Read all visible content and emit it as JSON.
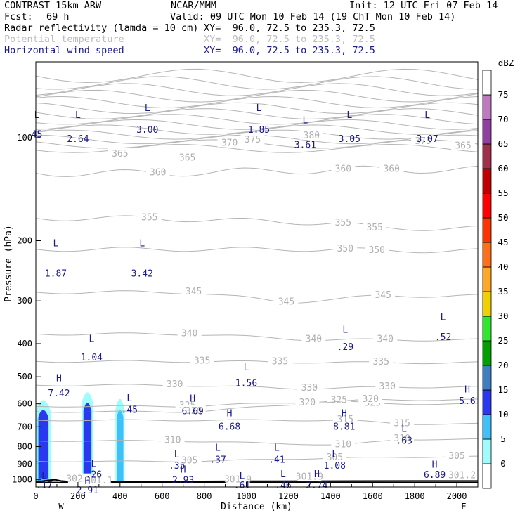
{
  "header": {
    "title_left": "CONTRAST 15km ARW",
    "title_center": "NCAR/MMM",
    "init": "Init: 12 UTC Fri 07 Feb 14",
    "fcst_label": "Fcst:",
    "fcst_value": "69 h",
    "valid": "Valid: 09 UTC Mon 10 Feb 14 (19 ChT Mon 10 Feb 14)",
    "fields": [
      {
        "name": "Radar reflectivity (lamda = 10 cm)",
        "xy": "XY=  96.0, 72.5 to 235.3, 72.5",
        "color": "#000000"
      },
      {
        "name": "Potential temperature",
        "xy": "XY=  96.0, 72.5 to 235.3, 72.5",
        "color": "#bdbdbd"
      },
      {
        "name": "Horizontal wind speed",
        "xy": "XY=  96.0, 72.5 to 235.3, 72.5",
        "color": "#1a1a90"
      }
    ]
  },
  "chart_data": {
    "type": "cross-section",
    "xlabel": "Distance (km)",
    "ylabel": "Pressure (hPa)",
    "xlim": [
      0,
      2100
    ],
    "ylim": [
      1050,
      60
    ],
    "y_scale": "log",
    "x_ticks": [
      0,
      200,
      400,
      600,
      800,
      1000,
      1200,
      1400,
      1600,
      1800,
      2000
    ],
    "y_ticks": [
      100,
      200,
      300,
      400,
      500,
      600,
      700,
      800,
      900,
      1000
    ],
    "x_end_labels": [
      "W",
      "E"
    ],
    "colorbar": {
      "unit": "dBZ",
      "levels": [
        "0",
        "5",
        "10",
        "15",
        "20",
        "25",
        "30",
        "35",
        "40",
        "45",
        "50",
        "55",
        "60",
        "65",
        "70",
        "75"
      ],
      "colors": [
        "#ffffff",
        "#9efcfc",
        "#40c0f8",
        "#2a38f0",
        "#3f7fbf",
        "#00a000",
        "#2ee82e",
        "#f0d000",
        "#ffa726",
        "#ff6f1a",
        "#ff3300",
        "#ff0000",
        "#c00000",
        "#a0304a",
        "#9040a0",
        "#c078c0",
        "#ffffff"
      ]
    },
    "reflectivity_columns": [
      {
        "x_center": 35,
        "x_halfwidth": 36,
        "top_hpa": 580,
        "core_halfwidth": 22,
        "core_top_hpa": 620
      },
      {
        "x_center": 245,
        "x_halfwidth": 28,
        "top_hpa": 550,
        "core_halfwidth": 16,
        "core_top_hpa": 590
      },
      {
        "x_center": 400,
        "x_halfwidth": 22,
        "top_hpa": 575,
        "core_halfwidth": 0,
        "core_top_hpa": 0
      }
    ],
    "isentropes": [
      {
        "value": "365",
        "labels": [
          [
            400,
            112
          ],
          [
            720,
            115
          ],
          [
            2030,
            106
          ]
        ]
      },
      {
        "value": "370",
        "labels": [
          [
            920,
            104
          ]
        ]
      },
      {
        "value": "375",
        "labels": [
          [
            1030,
            102
          ],
          [
            1840,
            103
          ]
        ]
      },
      {
        "value": "380",
        "labels": [
          [
            1310,
            99
          ]
        ]
      },
      {
        "value": "360",
        "labels": [
          [
            580,
            127
          ],
          [
            1460,
            124
          ],
          [
            1690,
            124
          ]
        ]
      },
      {
        "value": "355",
        "labels": [
          [
            540,
            172
          ],
          [
            1460,
            178
          ],
          [
            1610,
            184
          ]
        ]
      },
      {
        "value": "350",
        "labels": [
          [
            1470,
            212
          ],
          [
            1620,
            214
          ]
        ]
      },
      {
        "value": "345",
        "labels": [
          [
            750,
            283
          ],
          [
            1190,
            303
          ],
          [
            1650,
            290
          ]
        ]
      },
      {
        "value": "340",
        "labels": [
          [
            730,
            375
          ],
          [
            1320,
            390
          ],
          [
            1660,
            390
          ]
        ]
      },
      {
        "value": "335",
        "labels": [
          [
            790,
            451
          ],
          [
            1160,
            453
          ],
          [
            1640,
            455
          ]
        ]
      },
      {
        "value": "330",
        "labels": [
          [
            660,
            529
          ],
          [
            1300,
            542
          ],
          [
            1670,
            536
          ]
        ]
      },
      {
        "value": "325",
        "labels": [
          [
            720,
            610
          ],
          [
            1440,
            588
          ],
          [
            1600,
            600
          ]
        ]
      },
      {
        "value": "320",
        "labels": [
          [
            750,
            633
          ],
          [
            1290,
            598
          ],
          [
            1590,
            584
          ]
        ]
      },
      {
        "value": "315",
        "labels": [
          [
            1470,
            670
          ],
          [
            1740,
            687
          ]
        ]
      },
      {
        "value": "310",
        "labels": [
          [
            650,
            770
          ],
          [
            1460,
            792
          ],
          [
            1740,
            762
          ]
        ]
      },
      {
        "value": "305",
        "labels": [
          [
            730,
            884
          ],
          [
            1420,
            864
          ],
          [
            2000,
            856
          ]
        ]
      },
      {
        "value": "301.2",
        "labels": [
          [
            2025,
            975
          ]
        ]
      },
      {
        "value": "301.9",
        "labels": [
          [
            960,
            1004
          ]
        ]
      },
      {
        "value": "301.9",
        "labels": [
          [
            1300,
            984
          ]
        ]
      },
      {
        "value": "302.1",
        "labels": [
          [
            210,
            1000
          ]
        ]
      },
      {
        "value": "301.1",
        "labels": [
          [
            300,
            1012
          ]
        ]
      }
    ],
    "wind_extrema": [
      {
        "type": "L",
        "value": "45",
        "x": 5,
        "p_type": 86,
        "p_val": 98
      },
      {
        "type": "L",
        "value": "2.64",
        "x": 200,
        "p_type": 86,
        "p_val": 101
      },
      {
        "type": "L",
        "value": "3.00",
        "x": 530,
        "p_type": 82,
        "p_val": 95
      },
      {
        "type": "L",
        "value": "1.85",
        "x": 1060,
        "p_type": 82,
        "p_val": 95
      },
      {
        "type": "L",
        "value": "3.61",
        "x": 1280,
        "p_type": 89,
        "p_val": 105
      },
      {
        "type": "L",
        "value": "3.05",
        "x": 1490,
        "p_type": 86,
        "p_val": 101
      },
      {
        "type": "L",
        "value": "3.07",
        "x": 1860,
        "p_type": 86,
        "p_val": 101
      },
      {
        "type": "L",
        "value": "1.87",
        "x": 95,
        "p_type": 204,
        "p_val": 250
      },
      {
        "type": "L",
        "value": "3.42",
        "x": 505,
        "p_type": 204,
        "p_val": 250
      },
      {
        "type": "L",
        "value": ".52",
        "x": 1935,
        "p_type": 335,
        "p_val": 383
      },
      {
        "type": "L",
        "value": ".29",
        "x": 1470,
        "p_type": 365,
        "p_val": 410
      },
      {
        "type": "L",
        "value": "1.04",
        "x": 265,
        "p_type": 388,
        "p_val": 440
      },
      {
        "type": "L",
        "value": "1.56",
        "x": 1000,
        "p_type": 470,
        "p_val": 523
      },
      {
        "type": "H",
        "value": "7.42",
        "x": 110,
        "p_type": 505,
        "p_val": 560
      },
      {
        "type": "H",
        "value": "5.6",
        "x": 2050,
        "p_type": 545,
        "p_val": 590
      },
      {
        "type": "L",
        "value": ".45",
        "x": 445,
        "p_type": 578,
        "p_val": 625
      },
      {
        "type": "H",
        "value": "6.69",
        "x": 745,
        "p_type": 580,
        "p_val": 632
      },
      {
        "type": "H",
        "value": "6.68",
        "x": 920,
        "p_type": 640,
        "p_val": 700
      },
      {
        "type": "H",
        "value": "8.81",
        "x": 1465,
        "p_type": 640,
        "p_val": 700
      },
      {
        "type": "L",
        "value": ".63",
        "x": 1750,
        "p_type": 710,
        "p_val": 770
      },
      {
        "type": "L",
        "value": ".37",
        "x": 865,
        "p_type": 808,
        "p_val": 875
      },
      {
        "type": "L",
        "value": ".41",
        "x": 1145,
        "p_type": 808,
        "p_val": 875
      },
      {
        "type": "L",
        "value": ".35",
        "x": 670,
        "p_type": 845,
        "p_val": 910
      },
      {
        "type": "L",
        "value": "1.08",
        "x": 1420,
        "p_type": 845,
        "p_val": 910
      },
      {
        "type": "L",
        "value": ".26",
        "x": 275,
        "p_type": 900,
        "p_val": 967
      },
      {
        "type": "H",
        "value": "2.93",
        "x": 700,
        "p_type": 935,
        "p_val": 1005
      },
      {
        "type": "H",
        "value": "6.89",
        "x": 1895,
        "p_type": 905,
        "p_val": 970
      },
      {
        "type": "L",
        "value": ".61",
        "x": 980,
        "p_type": 975,
        "p_val": 1040
      },
      {
        "type": "L",
        "value": ".46",
        "x": 1175,
        "p_type": 965,
        "p_val": 1040
      },
      {
        "type": "H",
        "value": "2.74",
        "x": 1335,
        "p_type": 965,
        "p_val": 1040
      },
      {
        "type": "L",
        "value": ".17",
        "x": 40,
        "p_type": 975,
        "p_val": 1040
      },
      {
        "type": "H",
        "value": "2.91",
        "x": 245,
        "p_type": 1010,
        "p_val": 1075
      }
    ]
  }
}
